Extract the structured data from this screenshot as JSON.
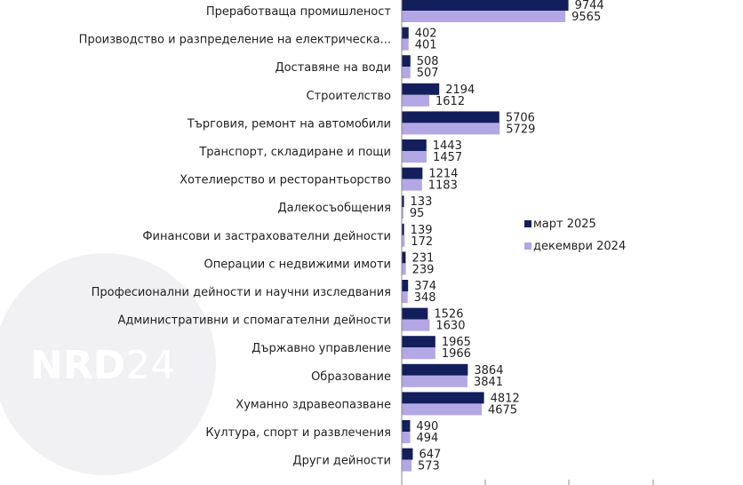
{
  "chart_data": {
    "type": "bar",
    "orientation": "horizontal",
    "categories": [
      "Преработваща промишленост",
      "Производство и разпределение на електрическа...",
      "Доставяне на води",
      "Строителство",
      "Търговия, ремонт на автомобили",
      "Транспорт, складиране и пощи",
      "Хотелиерство и ресторантьорство",
      "Далекосъобщения",
      "Финансови и застрахователни дейности",
      "Операции с недвижими имоти",
      "Професионални дейности и научни изследвания",
      "Административни и спомагателни дейности",
      "Държавно управление",
      "Образование",
      "Хуманно здравеопазване",
      "Култура, спорт и развлечения",
      "Други дейности"
    ],
    "series": [
      {
        "name": "март 2025",
        "color": "#131f5c",
        "values": [
          9744,
          402,
          508,
          2194,
          5706,
          1443,
          1214,
          133,
          139,
          231,
          374,
          1526,
          1965,
          3864,
          4812,
          490,
          647
        ]
      },
      {
        "name": "декември 2024",
        "color": "#b4a7e6",
        "values": [
          9565,
          401,
          507,
          1612,
          5729,
          1457,
          1183,
          95,
          172,
          239,
          348,
          1630,
          1966,
          3841,
          4675,
          494,
          573
        ]
      }
    ],
    "xlim": [
      0,
      10000
    ],
    "grid": false,
    "legend_position": "right"
  },
  "watermark": {
    "bold": "NRD",
    "light": "24"
  }
}
